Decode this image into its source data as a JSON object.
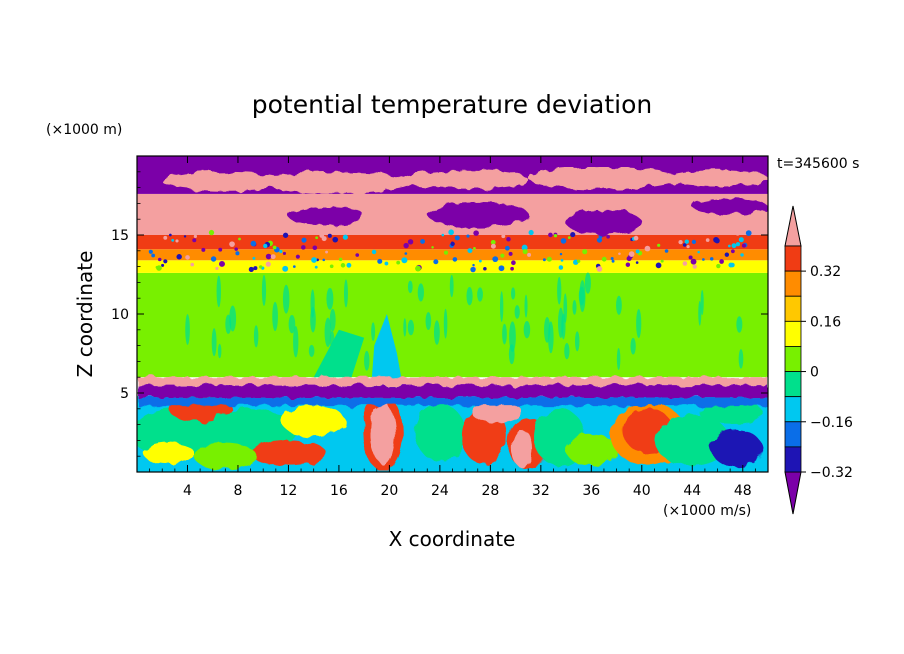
{
  "chart_data": {
    "type": "heatmap",
    "title": "potential temperature deviation",
    "xlabel": "X coordinate",
    "ylabel": "Z coordinate",
    "x_unit": "(×1000 m/s)",
    "y_unit": "(×1000 m)",
    "time_label": "t=345600 s",
    "xlim": [
      0,
      50
    ],
    "ylim": [
      0,
      20
    ],
    "x_ticks": [
      4,
      8,
      12,
      16,
      20,
      24,
      28,
      32,
      36,
      40,
      44,
      48
    ],
    "y_ticks": [
      5,
      10,
      15
    ],
    "colorbar": {
      "ticks": [
        "0.32",
        "0.16",
        "0",
        "−0.16",
        "−0.32"
      ],
      "levels": [
        -0.4,
        -0.32,
        -0.24,
        -0.16,
        -0.08,
        0,
        0.08,
        0.16,
        0.24,
        0.32,
        0.4
      ],
      "colors": [
        "#7b00a8",
        "#1e14b4",
        "#0a6ee8",
        "#00c8f0",
        "#00e08c",
        "#78f000",
        "#ffff00",
        "#ffc800",
        "#ff8c00",
        "#f03c14",
        "#f4a0a0"
      ]
    },
    "bands": [
      {
        "z": [
          0,
          5.5
        ],
        "value": "mixed"
      },
      {
        "z": [
          5.5,
          6.2
        ],
        "value": 0.4
      },
      {
        "z": [
          4.6,
          5.5
        ],
        "value": -0.4
      },
      {
        "z": [
          6.2,
          12.5
        ],
        "value": 0
      },
      {
        "z": [
          12.5,
          15.2
        ],
        "value": 0.3
      },
      {
        "z": [
          15.2,
          17.5
        ],
        "value": 0.4
      },
      {
        "z": [
          17.5,
          20
        ],
        "value": -0.4
      }
    ]
  }
}
